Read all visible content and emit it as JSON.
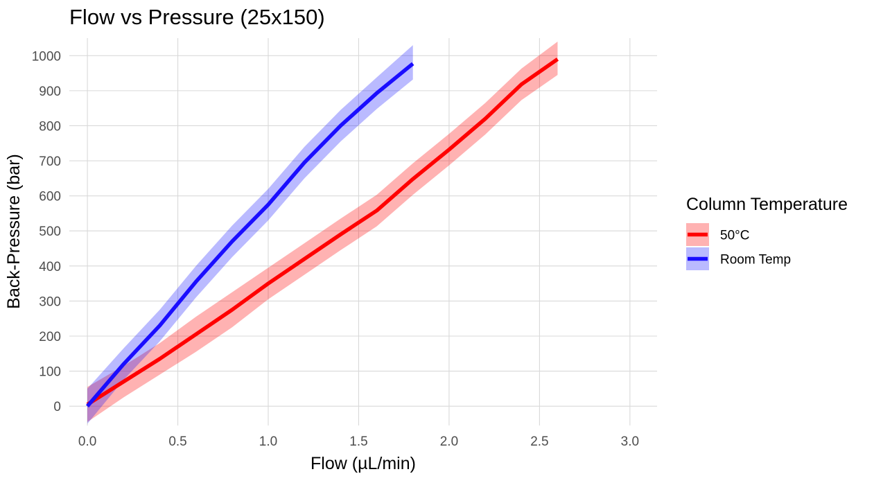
{
  "chart_data": {
    "type": "line",
    "title": "Flow vs Pressure (25x150)",
    "xlabel": "Flow (µL/min)",
    "ylabel": "Back-Pressure (bar)",
    "xlim": [
      -0.1,
      3.15
    ],
    "ylim": [
      -55,
      1050
    ],
    "x_ticks": [
      0.0,
      0.5,
      1.0,
      1.5,
      2.0,
      2.5,
      3.0
    ],
    "x_tick_labels": [
      "0.0",
      "0.5",
      "1.0",
      "1.5",
      "2.0",
      "2.5",
      "3.0"
    ],
    "y_ticks": [
      0,
      100,
      200,
      300,
      400,
      500,
      600,
      700,
      800,
      900,
      1000
    ],
    "y_tick_labels": [
      "0",
      "100",
      "200",
      "300",
      "400",
      "500",
      "600",
      "700",
      "800",
      "900",
      "1000"
    ],
    "grid": true,
    "legend": {
      "title": "Column Temperature",
      "placement": "right"
    },
    "series": [
      {
        "name": "50°C",
        "color": "#ff0000",
        "band_color": "#ff0000",
        "band_opacity": 0.3,
        "x": [
          0.0,
          0.2,
          0.4,
          0.6,
          0.8,
          1.0,
          1.2,
          1.4,
          1.6,
          1.8,
          2.0,
          2.2,
          2.4,
          2.6
        ],
        "y": [
          5,
          70,
          135,
          205,
          275,
          350,
          420,
          490,
          558,
          648,
          732,
          820,
          918,
          990
        ],
        "lower": [
          -45,
          25,
          90,
          155,
          225,
          305,
          375,
          445,
          513,
          603,
          687,
          775,
          873,
          945
        ],
        "upper": [
          55,
          115,
          180,
          255,
          325,
          395,
          465,
          535,
          603,
          693,
          777,
          865,
          963,
          1040
        ]
      },
      {
        "name": "Room Temp",
        "color": "#1a0dff",
        "band_color": "#0000ff",
        "band_opacity": 0.27,
        "x": [
          0.0,
          0.2,
          0.4,
          0.6,
          0.8,
          1.0,
          1.2,
          1.4,
          1.6,
          1.8
        ],
        "y": [
          0,
          120,
          230,
          355,
          470,
          575,
          695,
          800,
          893,
          977
        ],
        "lower": [
          -50,
          75,
          185,
          310,
          425,
          530,
          650,
          755,
          848,
          932
        ],
        "upper": [
          50,
          165,
          275,
          400,
          515,
          620,
          740,
          845,
          938,
          1030
        ]
      }
    ]
  }
}
